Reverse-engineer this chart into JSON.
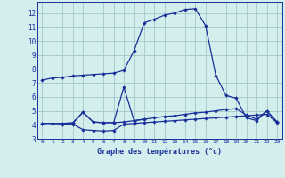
{
  "title": "Graphe des températures (°c)",
  "bg_color": "#d4eeee",
  "grid_color": "#aacccc",
  "line_color": "#1a3099",
  "xlim": [
    -0.5,
    23.5
  ],
  "ylim": [
    3,
    12.8
  ],
  "xticks": [
    0,
    1,
    2,
    3,
    4,
    5,
    6,
    7,
    8,
    9,
    10,
    11,
    12,
    13,
    14,
    15,
    16,
    17,
    18,
    19,
    20,
    21,
    22,
    23
  ],
  "yticks": [
    3,
    4,
    5,
    6,
    7,
    8,
    9,
    10,
    11,
    12
  ],
  "series1_x": [
    0,
    1,
    2,
    3,
    4,
    5,
    6,
    7,
    8,
    9,
    10,
    11,
    12,
    13,
    14,
    15,
    16,
    17,
    18,
    19,
    20,
    21,
    22,
    23
  ],
  "series1_y": [
    7.2,
    7.35,
    7.4,
    7.5,
    7.55,
    7.6,
    7.65,
    7.7,
    7.9,
    9.3,
    11.3,
    11.55,
    11.85,
    12.0,
    12.25,
    12.3,
    11.1,
    7.55,
    6.1,
    5.9,
    4.5,
    4.3,
    5.0,
    4.2
  ],
  "series2_x": [
    0,
    1,
    2,
    3,
    4,
    5,
    6,
    7,
    8,
    9,
    10,
    11,
    12,
    13,
    14,
    15,
    16,
    17,
    18,
    19,
    20,
    21,
    22,
    23
  ],
  "series2_y": [
    4.1,
    4.1,
    4.1,
    4.15,
    4.9,
    4.2,
    4.15,
    4.15,
    4.2,
    4.3,
    4.4,
    4.5,
    4.6,
    4.65,
    4.75,
    4.85,
    4.9,
    5.0,
    5.1,
    5.15,
    4.7,
    4.4,
    5.0,
    4.2
  ],
  "series3_x": [
    0,
    1,
    2,
    3,
    4,
    5,
    6,
    7,
    8,
    9,
    10,
    11,
    12,
    13,
    14,
    15,
    16,
    17,
    18,
    19,
    20,
    21,
    22,
    23
  ],
  "series3_y": [
    4.1,
    4.1,
    4.05,
    4.05,
    3.65,
    3.6,
    3.55,
    3.6,
    4.05,
    4.1,
    4.15,
    4.2,
    4.25,
    4.3,
    4.35,
    4.4,
    4.45,
    4.5,
    4.55,
    4.6,
    4.65,
    4.7,
    4.75,
    4.15
  ],
  "series4_x": [
    2,
    3,
    4,
    5,
    6,
    7,
    8,
    9,
    10
  ],
  "series4_y": [
    4.1,
    4.1,
    4.9,
    4.2,
    4.15,
    4.15,
    6.7,
    4.3,
    4.4
  ]
}
